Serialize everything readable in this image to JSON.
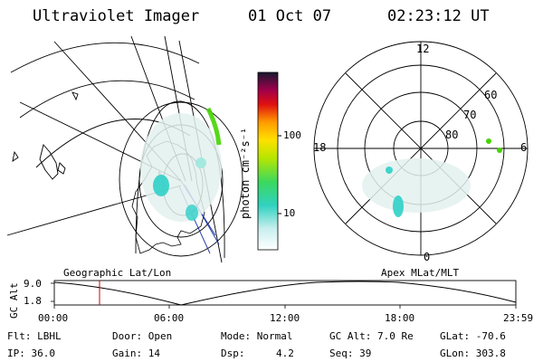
{
  "header": {
    "title": "Ultraviolet Imager",
    "date": "01 Oct 07",
    "time": "02:23:12 UT"
  },
  "colorbar": {
    "unit": "photon cm⁻²s⁻¹",
    "ticks": [
      "100",
      "10"
    ]
  },
  "polar_plot": {
    "mlt_labels": [
      "12",
      "18",
      "6",
      "0"
    ],
    "lat_labels": [
      "60",
      "70",
      "80"
    ]
  },
  "timeline": {
    "left_title": "Geographic Lat/Lon",
    "right_title": "Apex MLat/MLT",
    "y_axis_label": "GC Alt",
    "y_ticks": [
      "9.0",
      "1.8"
    ],
    "x_ticks": [
      "00:00",
      "06:00",
      "12:00",
      "18:00",
      "23:59"
    ]
  },
  "footer": {
    "flt": "Flt: LBHL",
    "ip": "IP: 36.0",
    "door": "Door: Open",
    "gain": "Gain: 14",
    "mode": "Mode: Normal",
    "dsp_label": "Dsp:",
    "dsp_value": "4.2",
    "gcalt": "GC Alt: 7.0 Re",
    "seq": "Seq: 39",
    "glat": "GLat: -70.6",
    "glon": "GLon: 303.8"
  },
  "colors": {
    "foreground": "#000000",
    "background": "#ffffff",
    "marker": "#cc0000",
    "trajectory_blue": "#1a2fa8",
    "aurora_green": "#44d400",
    "aurora_cyan": "#2fd0c8"
  }
}
